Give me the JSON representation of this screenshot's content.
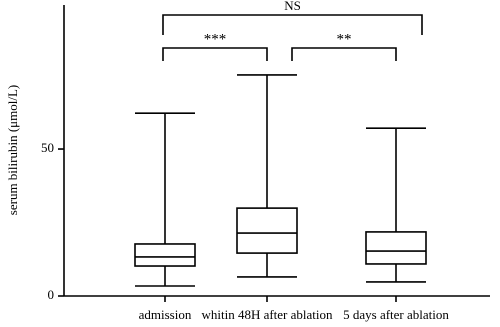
{
  "chart_data": {
    "type": "box",
    "y_label": "serum bilirubin (μmol/L)",
    "categories": [
      "admission",
      "whitin 48H after ablation",
      "5 days after ablation"
    ],
    "boxes": [
      {
        "min": 3.4,
        "q1": 10.2,
        "median": 13.3,
        "q3": 17.7,
        "max": 62.2
      },
      {
        "min": 6.5,
        "q1": 14.6,
        "median": 21.4,
        "q3": 29.9,
        "max": 75.2
      },
      {
        "min": 4.8,
        "q1": 10.9,
        "median": 15.3,
        "q3": 21.8,
        "max": 57.1
      }
    ],
    "ylim": [
      0,
      99
    ],
    "yticks": [
      0,
      50
    ],
    "annotations": [
      {
        "text": "NS",
        "between": [
          "admission",
          "5 days after ablation"
        ]
      },
      {
        "text": "***",
        "between": [
          "admission",
          "whitin 48H after ablation"
        ]
      },
      {
        "text": "**",
        "between": [
          "whitin 48H after ablation",
          "5 days after ablation"
        ]
      }
    ]
  }
}
